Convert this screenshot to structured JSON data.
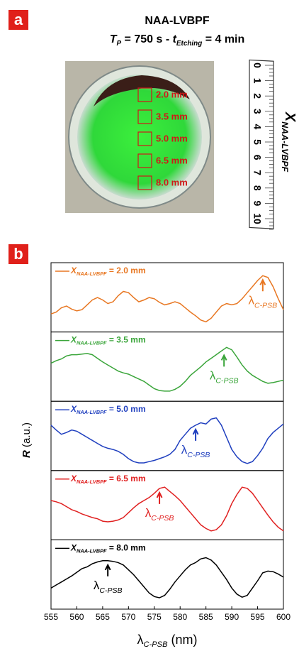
{
  "panel_a": {
    "label": "a",
    "title": "NAA-LVBPF",
    "subtitle": [
      "T",
      "P",
      " = 750 s - ",
      "t",
      "Etching",
      " = 4 min"
    ],
    "square_labels": [
      "2.0 mm",
      "3.5 mm",
      "5.0 mm",
      "6.5 mm",
      "8.0 mm"
    ],
    "ruler_numbers": [
      0,
      1,
      2,
      3,
      4,
      5,
      6,
      7,
      8,
      9,
      10
    ],
    "axis_label": [
      "X",
      "NAA-LVBPF"
    ]
  },
  "chart_data": {
    "type": "line",
    "panel_label": "b",
    "x": [
      555,
      556,
      557,
      558,
      559,
      560,
      561,
      562,
      563,
      564,
      565,
      566,
      567,
      568,
      569,
      570,
      571,
      572,
      573,
      574,
      575,
      576,
      577,
      578,
      579,
      580,
      581,
      582,
      583,
      584,
      585,
      586,
      587,
      588,
      589,
      590,
      591,
      592,
      593,
      594,
      595,
      596,
      597,
      598,
      599,
      600
    ],
    "xlim": [
      555,
      600
    ],
    "xticks": [
      555,
      560,
      565,
      570,
      575,
      580,
      585,
      590,
      595,
      600
    ],
    "ylim": [
      0,
      1
    ],
    "xlabel": [
      "λ",
      "C-PSB",
      " (nm)"
    ],
    "ylabel": [
      "R",
      " (a.u.)"
    ],
    "legend_symbol": "X",
    "legend_subscript": "NAA-LVBPF",
    "annotation": [
      "λ",
      "C-PSB"
    ],
    "series": [
      {
        "name": " = 2.0 mm",
        "color": "#e87722",
        "arrow_x": 596,
        "values": [
          0.25,
          0.28,
          0.35,
          0.38,
          0.33,
          0.3,
          0.32,
          0.4,
          0.48,
          0.52,
          0.48,
          0.42,
          0.45,
          0.55,
          0.62,
          0.6,
          0.52,
          0.45,
          0.48,
          0.52,
          0.5,
          0.44,
          0.4,
          0.42,
          0.45,
          0.42,
          0.35,
          0.28,
          0.22,
          0.15,
          0.12,
          0.18,
          0.28,
          0.38,
          0.42,
          0.4,
          0.42,
          0.5,
          0.6,
          0.7,
          0.8,
          0.88,
          0.85,
          0.7,
          0.5,
          0.32
        ]
      },
      {
        "name": " = 3.5 mm",
        "color": "#3aa53a",
        "arrow_x": 588.5,
        "values": [
          0.58,
          0.62,
          0.65,
          0.7,
          0.72,
          0.72,
          0.73,
          0.74,
          0.72,
          0.66,
          0.6,
          0.55,
          0.5,
          0.45,
          0.42,
          0.4,
          0.36,
          0.32,
          0.28,
          0.22,
          0.16,
          0.13,
          0.12,
          0.12,
          0.15,
          0.2,
          0.28,
          0.38,
          0.45,
          0.52,
          0.6,
          0.66,
          0.72,
          0.78,
          0.84,
          0.8,
          0.68,
          0.55,
          0.45,
          0.38,
          0.33,
          0.28,
          0.25,
          0.26,
          0.28,
          0.3
        ]
      },
      {
        "name": " = 5.0 mm",
        "color": "#1f3fbf",
        "arrow_x": 583,
        "values": [
          0.7,
          0.62,
          0.55,
          0.58,
          0.62,
          0.6,
          0.55,
          0.5,
          0.45,
          0.4,
          0.35,
          0.32,
          0.3,
          0.27,
          0.22,
          0.15,
          0.1,
          0.08,
          0.08,
          0.1,
          0.12,
          0.15,
          0.18,
          0.22,
          0.3,
          0.45,
          0.55,
          0.65,
          0.7,
          0.74,
          0.72,
          0.8,
          0.82,
          0.7,
          0.5,
          0.3,
          0.18,
          0.1,
          0.07,
          0.1,
          0.2,
          0.32,
          0.48,
          0.58,
          0.65,
          0.72
        ]
      },
      {
        "name": " = 6.5 mm",
        "color": "#e02020",
        "arrow_x": 576,
        "values": [
          0.6,
          0.58,
          0.55,
          0.5,
          0.45,
          0.42,
          0.38,
          0.35,
          0.32,
          0.3,
          0.26,
          0.25,
          0.26,
          0.28,
          0.32,
          0.4,
          0.48,
          0.55,
          0.6,
          0.65,
          0.72,
          0.8,
          0.82,
          0.75,
          0.68,
          0.6,
          0.5,
          0.4,
          0.3,
          0.2,
          0.14,
          0.1,
          0.12,
          0.2,
          0.35,
          0.55,
          0.7,
          0.82,
          0.8,
          0.72,
          0.6,
          0.48,
          0.36,
          0.25,
          0.16,
          0.1
        ]
      },
      {
        "name": " = 8.0 mm",
        "color": "#000000",
        "arrow_x": 566,
        "values": [
          0.3,
          0.35,
          0.4,
          0.45,
          0.5,
          0.56,
          0.62,
          0.65,
          0.7,
          0.73,
          0.75,
          0.75,
          0.74,
          0.72,
          0.68,
          0.6,
          0.52,
          0.42,
          0.32,
          0.22,
          0.16,
          0.14,
          0.18,
          0.28,
          0.4,
          0.5,
          0.6,
          0.68,
          0.72,
          0.78,
          0.8,
          0.76,
          0.68,
          0.56,
          0.44,
          0.3,
          0.2,
          0.15,
          0.18,
          0.3,
          0.42,
          0.55,
          0.58,
          0.57,
          0.53,
          0.48
        ]
      }
    ]
  }
}
